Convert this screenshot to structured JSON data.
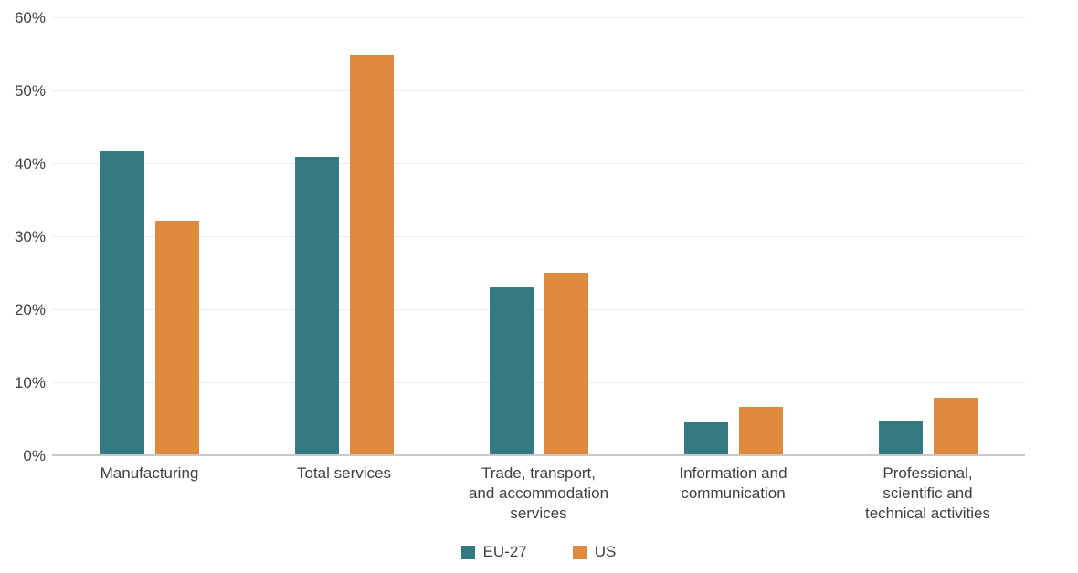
{
  "chart_data": {
    "type": "bar",
    "title": "",
    "xlabel": "",
    "ylabel": "",
    "categories": [
      "Manufacturing",
      "Total services",
      "Trade, transport, and accommodation services",
      "Information and communication",
      "Professional, scientific and technical activities"
    ],
    "category_label_lines": [
      [
        "Manufacturing"
      ],
      [
        "Total services"
      ],
      [
        "Trade, transport,",
        "and accommodation",
        "services"
      ],
      [
        "Information and",
        "communication"
      ],
      [
        "Professional,",
        "scientific and",
        "technical activities"
      ]
    ],
    "series": [
      {
        "name": "EU-27",
        "color": "#337A82",
        "values": [
          41.6,
          40.7,
          22.9,
          4.5,
          4.6
        ]
      },
      {
        "name": "US",
        "color": "#E08A3D",
        "values": [
          32.0,
          54.7,
          24.9,
          6.5,
          7.8
        ]
      }
    ],
    "ylim": [
      0,
      60
    ],
    "ytick_step": 10,
    "ytick_labels": [
      "0%",
      "10%",
      "20%",
      "30%",
      "40%",
      "50%",
      "60%"
    ],
    "grid": true,
    "legend_position": "bottom"
  },
  "style": {
    "grid_color": "#ECECEC",
    "axis_line_color": "#C9C9C9",
    "text_color": "#404040",
    "background": "#FFFFFF",
    "eu_color": "#337A82",
    "us_color": "#E08A3D"
  }
}
